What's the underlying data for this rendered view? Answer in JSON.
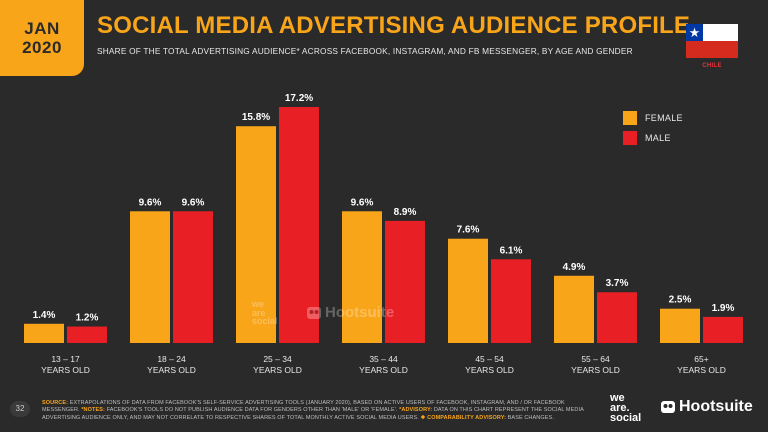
{
  "header": {
    "month": "JAN",
    "year": "2020",
    "title": "SOCIAL MEDIA ADVERTISING AUDIENCE PROFILE",
    "subtitle": "SHARE OF THE TOTAL ADVERTISING AUDIENCE* ACROSS FACEBOOK, INSTAGRAM, AND FB MESSENGER, BY AGE AND GENDER",
    "country": "CHILE"
  },
  "colors": {
    "female": "#f9a51a",
    "male": "#e81f25",
    "background": "#2a2a2a"
  },
  "chart_data": {
    "type": "bar",
    "categories": [
      "13 – 17|YEARS OLD",
      "18 – 24|YEARS OLD",
      "25 – 34|YEARS OLD",
      "35 – 44|YEARS OLD",
      "45 – 54|YEARS OLD",
      "55 – 64|YEARS OLD",
      "65+|YEARS OLD"
    ],
    "series": [
      {
        "name": "FEMALE",
        "values": [
          1.4,
          9.6,
          15.8,
          9.6,
          7.6,
          4.9,
          2.5
        ],
        "labels": [
          "1.4%",
          "9.6%",
          "15.8%",
          "9.6%",
          "7.6%",
          "4.9%",
          "2.5%"
        ]
      },
      {
        "name": "MALE",
        "values": [
          1.2,
          9.6,
          17.2,
          8.9,
          6.1,
          3.7,
          1.9
        ],
        "labels": [
          "1.2%",
          "9.6%",
          "17.2%",
          "8.9%",
          "6.1%",
          "3.7%",
          "1.9%"
        ]
      }
    ],
    "legend": [
      "FEMALE",
      "MALE"
    ],
    "legend_position": "top-right",
    "ylim": [
      0,
      17.2
    ],
    "grid": false
  },
  "watermark": {
    "we": "we",
    "are": "are",
    "social": "social",
    "hootsuite": "Hootsuite"
  },
  "footer": {
    "page_number": "32",
    "source_label": "SOURCE:",
    "source_text": " EXTRAPOLATIONS OF DATA FROM FACEBOOK'S SELF-SERVICE ADVERTISING TOOLS (JANUARY 2020), BASED ON ACTIVE USERS OF FACEBOOK, INSTAGRAM, AND / OR FACEBOOK MESSENGER.",
    "notes_label": " *NOTES:",
    "notes_text": " FACEBOOK'S TOOLS DO NOT PUBLISH AUDIENCE DATA FOR GENDERS OTHER THAN 'MALE' OR 'FEMALE'.",
    "advisory_label": " *ADVISORY:",
    "advisory_text": " DATA ON THIS CHART REPRESENT THE SOCIAL MEDIA ADVERTISING AUDIENCE ONLY, AND MAY NOT CORRELATE TO RESPECTIVE SHARES OF TOTAL MONTHLY ACTIVE SOCIAL MEDIA USERS.",
    "comparability_label": " ❖ COMPARABILITY ADVISORY:",
    "comparability_text": " BASE CHANGES.",
    "logo_we": "we",
    "logo_are": "are.",
    "logo_social": "social",
    "logo_hootsuite": "Hootsuite"
  }
}
